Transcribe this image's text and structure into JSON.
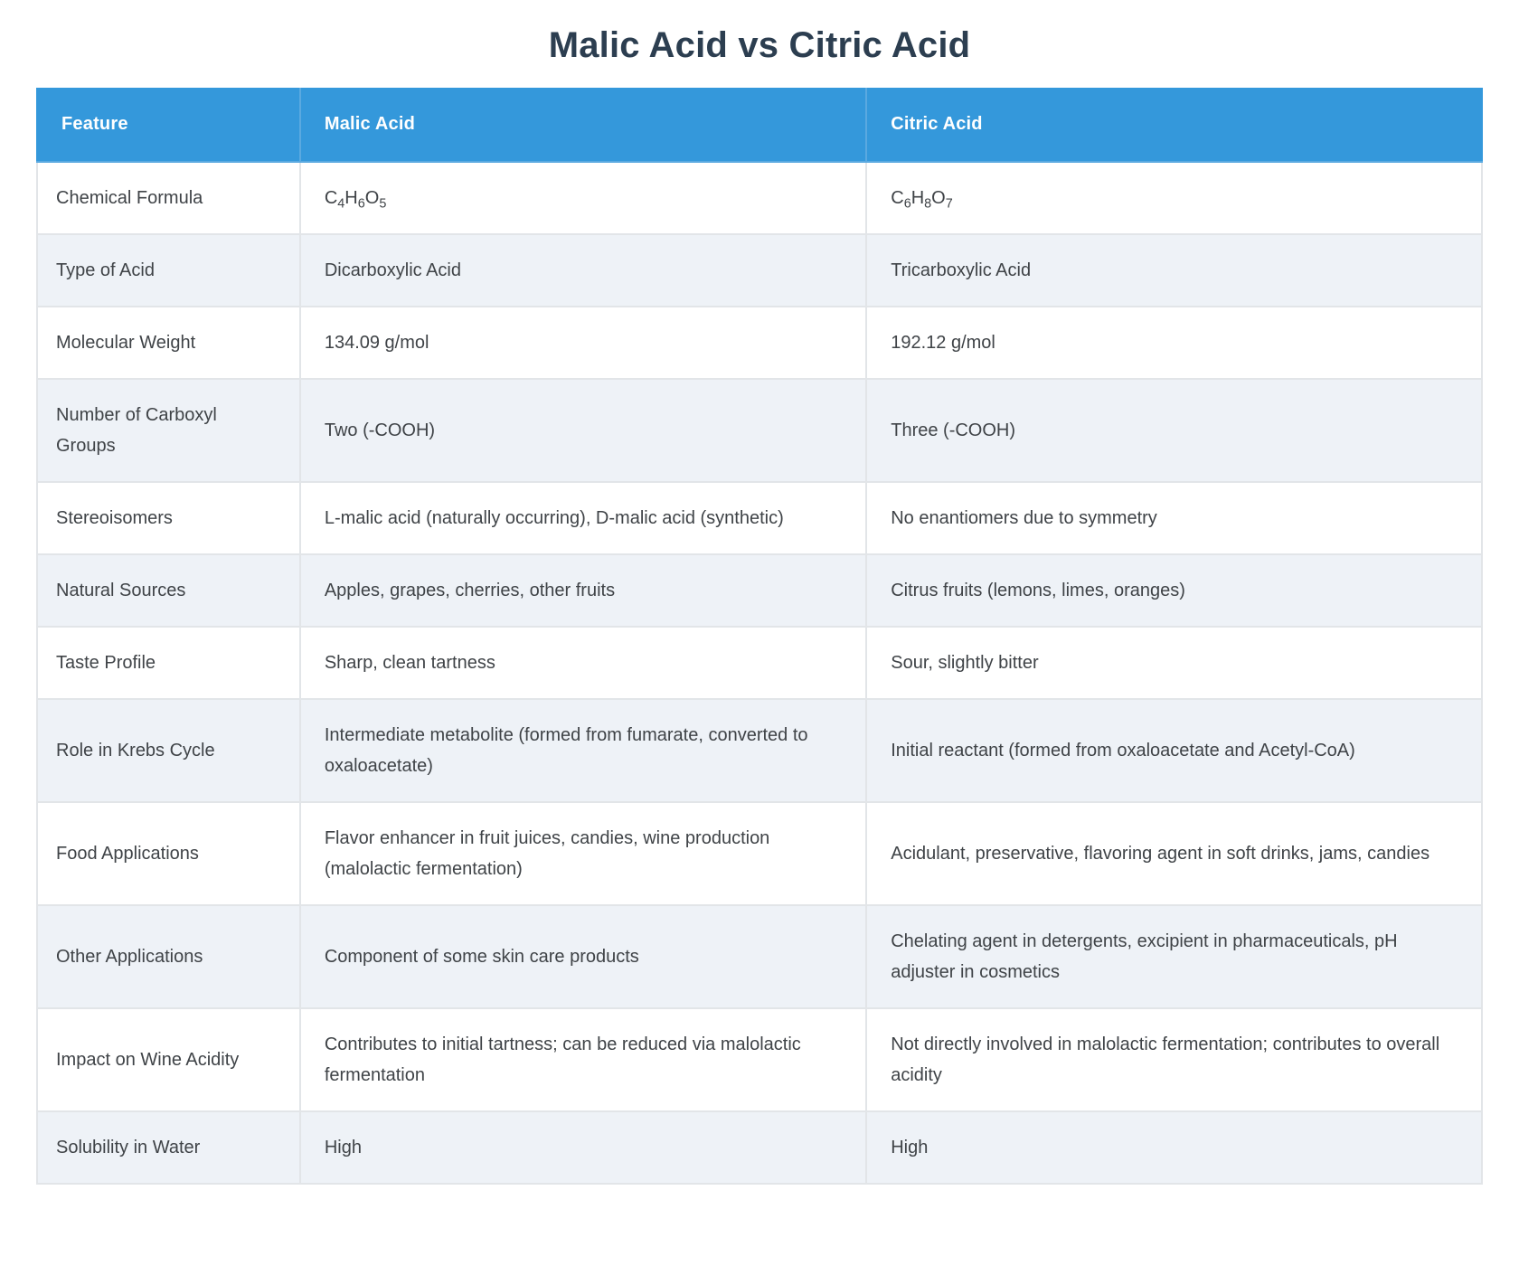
{
  "page": {
    "title": "Malic Acid vs Citric Acid"
  },
  "colors": {
    "header_bg": "#3498db",
    "header_divider": "#5aa9e0",
    "header_text": "#ffffff",
    "title_text": "#2c3e50",
    "body_text": "#3f4347",
    "row_bg": "#ffffff",
    "row_alt_bg": "#eef2f7",
    "border": "#e2e5e8",
    "page_bg": "#ffffff"
  },
  "table": {
    "columns": [
      "Feature",
      "Malic Acid",
      "Citric Acid"
    ],
    "rows": [
      {
        "feature": "Chemical Formula",
        "malic": "C4H6O5",
        "citric": "C6H8O7",
        "formula": true
      },
      {
        "feature": "Type of Acid",
        "malic": "Dicarboxylic Acid",
        "citric": "Tricarboxylic Acid"
      },
      {
        "feature": "Molecular Weight",
        "malic": "134.09 g/mol",
        "citric": "192.12 g/mol"
      },
      {
        "feature": "Number of Carboxyl Groups",
        "malic": "Two (-COOH)",
        "citric": "Three (-COOH)"
      },
      {
        "feature": "Stereoisomers",
        "malic": "L-malic acid (naturally occurring), D-malic acid (synthetic)",
        "citric": "No enantiomers due to symmetry"
      },
      {
        "feature": "Natural Sources",
        "malic": "Apples, grapes, cherries, other fruits",
        "citric": "Citrus fruits (lemons, limes, oranges)"
      },
      {
        "feature": "Taste Profile",
        "malic": "Sharp, clean tartness",
        "citric": "Sour, slightly bitter"
      },
      {
        "feature": "Role in Krebs Cycle",
        "malic": "Intermediate metabolite (formed from fumarate, converted to oxaloacetate)",
        "citric": "Initial reactant (formed from oxaloacetate and Acetyl-CoA)"
      },
      {
        "feature": "Food Applications",
        "malic": "Flavor enhancer in fruit juices, candies, wine production (malolactic fermentation)",
        "citric": "Acidulant, preservative, flavoring agent in soft drinks, jams, candies"
      },
      {
        "feature": "Other Applications",
        "malic": "Component of some skin care products",
        "citric": "Chelating agent in detergents, excipient in pharmaceuticals, pH adjuster in cosmetics"
      },
      {
        "feature": "Impact on Wine Acidity",
        "malic": "Contributes to initial tartness; can be reduced via malolactic fermentation",
        "citric": "Not directly involved in malolactic fermentation; contributes to overall acidity"
      },
      {
        "feature": "Solubility in Water",
        "malic": "High",
        "citric": "High"
      }
    ]
  }
}
